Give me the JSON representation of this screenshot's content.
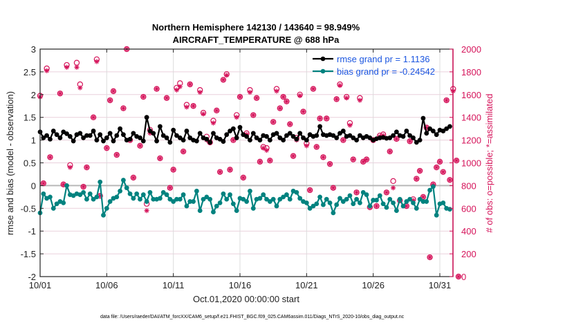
{
  "chart_data": {
    "type": "line",
    "title": "Northern Hemisphere 142130 / 143640 = 98.949%",
    "subtitle": "AIRCRAFT_TEMPERATURE @ 688 hPa",
    "xlabel": "Oct.01,2020 00:00:00 start",
    "ylabel": "rmse and bias (model - observation)",
    "ylabel_right": "# of obs: o=possible; *=assimilated",
    "footnote": "data file: /Users/raeder/DAI/ATM_forcXX/CAM6_setup/f.e21.FHIST_BGC.f09_025.CAM6assim.011/Diags_NTrS_2020-10/obs_diag_output.nc",
    "xlim_days": [
      0,
      31.4
    ],
    "ylim": [
      -2,
      3
    ],
    "ylim_right": [
      0,
      2000
    ],
    "x_ticks": [
      {
        "day": 0,
        "label": "10/01"
      },
      {
        "day": 5,
        "label": "10/06"
      },
      {
        "day": 10,
        "label": "10/11"
      },
      {
        "day": 15,
        "label": "10/16"
      },
      {
        "day": 20,
        "label": "10/21"
      },
      {
        "day": 25,
        "label": "10/26"
      },
      {
        "day": 30,
        "label": "10/31"
      }
    ],
    "y_ticks": [
      "3",
      "2.5",
      "2",
      "1.5",
      "1",
      "0.5",
      "0",
      "-0.5",
      "-1",
      "-1.5",
      "-2"
    ],
    "y_tick_values": [
      3,
      2.5,
      2,
      1.5,
      1,
      0.5,
      0,
      -0.5,
      -1,
      -1.5,
      -2
    ],
    "y_ticks_right": [
      "2000",
      "1800",
      "1600",
      "1400",
      "1200",
      "1000",
      "800",
      "600",
      "400",
      "200",
      "0"
    ],
    "y_tick_values_right": [
      2000,
      1800,
      1600,
      1400,
      1200,
      1000,
      800,
      600,
      400,
      200,
      0
    ],
    "grid": true,
    "legend_position": "top-right",
    "sample_interval_days": 0.25,
    "series": [
      {
        "name": "rmse grand pr = 1.1136",
        "color": "#000000",
        "axis": "left",
        "values": [
          1.18,
          1.05,
          1.1,
          1.02,
          1.2,
          1.12,
          1.05,
          1.18,
          1.14,
          1.08,
          0.98,
          1.12,
          1.15,
          1.05,
          1.1,
          1.1,
          1.2,
          1.0,
          1.12,
          0.98,
          1.05,
          1.15,
          0.98,
          1.1,
          1.25,
          1.12,
          1.0,
          1.02,
          1.15,
          1.08,
          1.05,
          0.98,
          1.5,
          1.2,
          1.15,
          0.98,
          1.3,
          1.1,
          1.05,
          0.95,
          1.22,
          1.1,
          1.05,
          1.0,
          1.2,
          1.05,
          1.0,
          0.98,
          1.15,
          1.05,
          1.02,
          0.95,
          1.15,
          1.05,
          1.02,
          0.97,
          1.12,
          1.2,
          1.25,
          1.05,
          1.28,
          1.12,
          1.08,
          1.0,
          1.15,
          1.05,
          1.0,
          1.1,
          1.08,
          1.0,
          1.12,
          1.15,
          1.05,
          1.0,
          1.1,
          1.15,
          1.08,
          1.02,
          1.15,
          1.05,
          1.0,
          1.12,
          1.08,
          1.1,
          1.3,
          1.12,
          1.1,
          1.12,
          1.1,
          1.05,
          1.15,
          1.2,
          1.08,
          1.1,
          1.05,
          1.0,
          1.1,
          1.05,
          1.08,
          1.05,
          1.0,
          1.03,
          1.05,
          1.06,
          1.04,
          1.05,
          1.1,
          1.18,
          1.1,
          1.08,
          1.2,
          1.1,
          1.05,
          0.95,
          1.0,
          1.48,
          1.15,
          1.25,
          1.2,
          1.12,
          1.22,
          1.2,
          1.25,
          1.3
        ]
      },
      {
        "name": "bias grand pr = -0.24542",
        "color": "#00827f",
        "axis": "left",
        "values": [
          -0.6,
          -0.18,
          -0.28,
          -0.25,
          -0.5,
          -0.4,
          -0.35,
          -0.38,
          0.0,
          -0.2,
          -0.22,
          -0.18,
          -0.2,
          -0.15,
          -0.3,
          -0.18,
          -0.3,
          -0.25,
          0.08,
          -0.65,
          -0.5,
          -0.35,
          -0.28,
          -0.25,
          -0.12,
          0.12,
          -0.05,
          -0.18,
          -0.28,
          -0.18,
          -0.3,
          -0.2,
          -0.35,
          -0.15,
          -0.3,
          -0.3,
          -0.28,
          -0.15,
          -0.2,
          -0.3,
          -0.35,
          -0.3,
          -0.3,
          -0.2,
          -0.45,
          -0.35,
          -0.35,
          -0.12,
          -0.55,
          -0.3,
          -0.25,
          -0.3,
          -0.58,
          -0.45,
          -0.38,
          -0.18,
          -0.3,
          -0.2,
          -0.4,
          -0.55,
          -0.28,
          -0.3,
          -0.35,
          -0.12,
          -0.5,
          -0.3,
          -0.28,
          -0.2,
          -0.3,
          -0.35,
          -0.3,
          -0.45,
          -0.3,
          -0.25,
          -0.2,
          -0.3,
          -0.12,
          -0.15,
          -0.28,
          -0.35,
          -0.38,
          -0.5,
          -0.45,
          -0.4,
          -0.25,
          -0.42,
          -0.3,
          -0.38,
          -0.6,
          -0.42,
          -0.28,
          -0.35,
          -0.3,
          -0.22,
          -0.4,
          -0.3,
          -0.38,
          -0.15,
          -0.2,
          -0.45,
          -0.32,
          -0.32,
          -0.22,
          -0.4,
          -0.48,
          -0.3,
          -0.38,
          -0.55,
          -0.3,
          -0.45,
          -0.35,
          -0.3,
          -0.38,
          -0.5,
          -0.3,
          -0.35,
          -0.35,
          -0.1,
          -0.02,
          -0.65,
          -0.4,
          -0.38,
          -0.5,
          -0.52
        ]
      }
    ],
    "obs_counts": {
      "color": "#d5135a",
      "possible_marker": "o",
      "assimilated_marker": "*",
      "points": [
        {
          "day": 0.0,
          "possible": 1590,
          "assimilated": 1580
        },
        {
          "day": 0.25,
          "possible": 820,
          "assimilated": 820
        },
        {
          "day": 0.5,
          "possible": 1830,
          "assimilated": 1810
        },
        {
          "day": 0.75,
          "possible": 1050,
          "assimilated": 1050
        },
        {
          "day": 1.5,
          "possible": 1610,
          "assimilated": 1610
        },
        {
          "day": 1.75,
          "possible": 810,
          "assimilated": 810
        },
        {
          "day": 2.0,
          "possible": 1860,
          "assimilated": 1840
        },
        {
          "day": 2.25,
          "possible": 980,
          "assimilated": 960
        },
        {
          "day": 2.75,
          "possible": 1880,
          "assimilated": 1840
        },
        {
          "day": 3.0,
          "possible": 1690,
          "assimilated": 1660
        },
        {
          "day": 3.25,
          "possible": 790,
          "assimilated": 790
        },
        {
          "day": 3.5,
          "possible": 960,
          "assimilated": 960
        },
        {
          "day": 4.0,
          "possible": 1400,
          "assimilated": 1400
        },
        {
          "day": 4.25,
          "possible": 1910,
          "assimilated": 1890
        },
        {
          "day": 4.5,
          "possible": 710,
          "assimilated": 710
        },
        {
          "day": 5.0,
          "possible": 1130,
          "assimilated": 1130
        },
        {
          "day": 5.25,
          "possible": 1550,
          "assimilated": 1550
        },
        {
          "day": 5.5,
          "possible": 1630,
          "assimilated": 1630
        },
        {
          "day": 5.75,
          "possible": 1070,
          "assimilated": 1070
        },
        {
          "day": 6.25,
          "possible": 1480,
          "assimilated": 1480
        },
        {
          "day": 6.5,
          "possible": 2000,
          "assimilated": 2000
        },
        {
          "day": 6.75,
          "possible": 1200,
          "assimilated": 1200
        },
        {
          "day": 7.0,
          "possible": 870,
          "assimilated": 870
        },
        {
          "day": 7.5,
          "possible": 1150,
          "assimilated": 1150
        },
        {
          "day": 7.75,
          "possible": 1580,
          "assimilated": 1580
        },
        {
          "day": 8.0,
          "possible": 640,
          "assimilated": 580
        },
        {
          "day": 8.25,
          "possible": 1290,
          "assimilated": 1260
        },
        {
          "day": 8.75,
          "possible": 1650,
          "assimilated": 1650
        },
        {
          "day": 9.0,
          "possible": 1040,
          "assimilated": 1040
        },
        {
          "day": 9.5,
          "possible": 1570,
          "assimilated": 1570
        },
        {
          "day": 9.75,
          "possible": 780,
          "assimilated": 780
        },
        {
          "day": 10.0,
          "possible": 940,
          "assimilated": 940
        },
        {
          "day": 10.25,
          "possible": 1660,
          "assimilated": 1640
        },
        {
          "day": 10.5,
          "possible": 1700,
          "assimilated": 1670
        },
        {
          "day": 10.75,
          "possible": 1100,
          "assimilated": 1100
        },
        {
          "day": 11.0,
          "possible": 1510,
          "assimilated": 1490
        },
        {
          "day": 11.25,
          "possible": 1690,
          "assimilated": 1690
        },
        {
          "day": 11.5,
          "possible": 1500,
          "assimilated": 1500
        },
        {
          "day": 12.0,
          "possible": 1640,
          "assimilated": 1620
        },
        {
          "day": 12.25,
          "possible": 1440,
          "assimilated": 1430
        },
        {
          "day": 12.5,
          "possible": 1230,
          "assimilated": 1200
        },
        {
          "day": 12.75,
          "possible": 1180,
          "assimilated": 1180
        },
        {
          "day": 13.0,
          "possible": 1370,
          "assimilated": 1350
        },
        {
          "day": 13.25,
          "possible": 1460,
          "assimilated": 1460
        },
        {
          "day": 13.5,
          "possible": 920,
          "assimilated": 920
        },
        {
          "day": 13.75,
          "possible": 1730,
          "assimilated": 1730
        },
        {
          "day": 14.0,
          "possible": 1780,
          "assimilated": 1770
        },
        {
          "day": 14.25,
          "possible": 940,
          "assimilated": 940
        },
        {
          "day": 14.5,
          "possible": 1200,
          "assimilated": 1200
        },
        {
          "day": 14.75,
          "possible": 1420,
          "assimilated": 1400
        },
        {
          "day": 15.0,
          "possible": 1580,
          "assimilated": 1580
        },
        {
          "day": 15.25,
          "possible": 870,
          "assimilated": 870
        },
        {
          "day": 15.5,
          "possible": 1260,
          "assimilated": 1250
        },
        {
          "day": 15.75,
          "possible": 1640,
          "assimilated": 1620
        },
        {
          "day": 16.0,
          "possible": 1420,
          "assimilated": 1420
        },
        {
          "day": 16.25,
          "possible": 1570,
          "assimilated": 1570
        },
        {
          "day": 16.5,
          "possible": 1010,
          "assimilated": 1010
        },
        {
          "day": 16.75,
          "possible": 1140,
          "assimilated": 1130
        },
        {
          "day": 17.0,
          "possible": 1130,
          "assimilated": 1110
        },
        {
          "day": 17.25,
          "possible": 1020,
          "assimilated": 1020
        },
        {
          "day": 17.5,
          "possible": 1360,
          "assimilated": 1360
        },
        {
          "day": 17.75,
          "possible": 1650,
          "assimilated": 1630
        },
        {
          "day": 18.0,
          "possible": 1480,
          "assimilated": 1480
        },
        {
          "day": 18.25,
          "possible": 1580,
          "assimilated": 1580
        },
        {
          "day": 18.5,
          "possible": 1540,
          "assimilated": 1540
        },
        {
          "day": 18.75,
          "possible": 1340,
          "assimilated": 1340
        },
        {
          "day": 19.0,
          "possible": 1060,
          "assimilated": 1060
        },
        {
          "day": 19.25,
          "possible": 1220,
          "assimilated": 1200
        },
        {
          "day": 19.5,
          "possible": 1600,
          "assimilated": 1590
        },
        {
          "day": 19.75,
          "possible": 1450,
          "assimilated": 1450
        },
        {
          "day": 20.0,
          "possible": 1170,
          "assimilated": 1150
        },
        {
          "day": 20.25,
          "possible": 760,
          "assimilated": 760
        },
        {
          "day": 20.5,
          "possible": 1650,
          "assimilated": 1650
        },
        {
          "day": 20.75,
          "possible": 1140,
          "assimilated": 1140
        },
        {
          "day": 21.0,
          "possible": 1390,
          "assimilated": 1390
        },
        {
          "day": 21.25,
          "possible": 1050,
          "assimilated": 1050
        },
        {
          "day": 21.5,
          "possible": 1390,
          "assimilated": 1390
        },
        {
          "day": 21.75,
          "possible": 990,
          "assimilated": 990
        },
        {
          "day": 22.0,
          "possible": 780,
          "assimilated": 780
        },
        {
          "day": 22.25,
          "possible": 1560,
          "assimilated": 1560
        },
        {
          "day": 22.5,
          "possible": 1690,
          "assimilated": 1680
        },
        {
          "day": 22.75,
          "possible": 1200,
          "assimilated": 1200
        },
        {
          "day": 23.0,
          "possible": 1580,
          "assimilated": 1570
        },
        {
          "day": 23.25,
          "possible": 1350,
          "assimilated": 1330
        },
        {
          "day": 23.5,
          "possible": 1030,
          "assimilated": 1030
        },
        {
          "day": 23.75,
          "possible": 740,
          "assimilated": 740
        },
        {
          "day": 24.0,
          "possible": 1570,
          "assimilated": 1550
        },
        {
          "day": 24.25,
          "possible": 1010,
          "assimilated": 1010
        },
        {
          "day": 24.5,
          "possible": 1030,
          "assimilated": 1030
        },
        {
          "day": 24.75,
          "possible": 610,
          "assimilated": 610
        },
        {
          "day": 25.0,
          "possible": 1200,
          "assimilated": 1200
        },
        {
          "day": 25.25,
          "possible": 620,
          "assimilated": 620
        },
        {
          "day": 25.5,
          "possible": 1240,
          "assimilated": 1230
        },
        {
          "day": 25.75,
          "possible": 1250,
          "assimilated": 1240
        },
        {
          "day": 26.0,
          "possible": 740,
          "assimilated": 740
        },
        {
          "day": 26.25,
          "possible": 1100,
          "assimilated": 1100
        },
        {
          "day": 26.5,
          "possible": 840,
          "assimilated": 780
        },
        {
          "day": 26.75,
          "possible": 1210,
          "assimilated": 1210
        },
        {
          "day": 27.0,
          "possible": 670,
          "assimilated": 670
        },
        {
          "day": 27.5,
          "possible": 620,
          "assimilated": 620
        },
        {
          "day": 27.75,
          "possible": 1190,
          "assimilated": 1190
        },
        {
          "day": 28.0,
          "possible": 680,
          "assimilated": 670
        },
        {
          "day": 28.25,
          "possible": 860,
          "assimilated": 860
        },
        {
          "day": 28.5,
          "possible": 930,
          "assimilated": 930
        },
        {
          "day": 28.75,
          "possible": 700,
          "assimilated": 700
        },
        {
          "day": 29.0,
          "possible": 1310,
          "assimilated": 1310
        },
        {
          "day": 29.25,
          "possible": 170,
          "assimilated": 170
        },
        {
          "day": 29.5,
          "possible": 810,
          "assimilated": 810
        },
        {
          "day": 29.75,
          "possible": 960,
          "assimilated": 960
        },
        {
          "day": 30.0,
          "possible": 1010,
          "assimilated": 1010
        },
        {
          "day": 30.25,
          "possible": 920,
          "assimilated": 920
        },
        {
          "day": 30.5,
          "possible": 1550,
          "assimilated": 1550
        },
        {
          "day": 30.75,
          "possible": 850,
          "assimilated": 850
        },
        {
          "day": 31.0,
          "possible": 1650,
          "assimilated": 1630
        },
        {
          "day": 31.25,
          "possible": 1020,
          "assimilated": 1020
        },
        {
          "day": 31.4,
          "possible": 0,
          "assimilated": 0
        }
      ]
    }
  },
  "colors": {
    "obs": "#d5135a",
    "rmse": "#000000",
    "bias": "#00827f",
    "legend_text": "#1a55e0",
    "zero_line": "#b8b8b8",
    "grid": "#ead0dc"
  }
}
